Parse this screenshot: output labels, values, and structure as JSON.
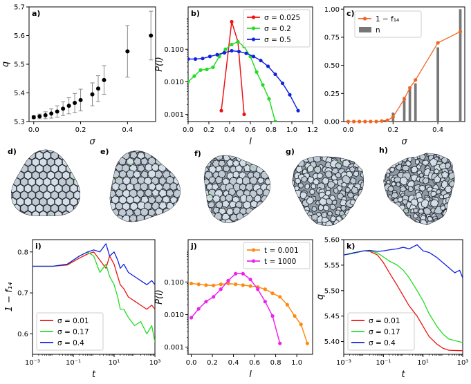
{
  "figure": {
    "description_none": null
  },
  "chart_data": [
    {
      "id": "a",
      "panel_label": "a)",
      "type": "scatter",
      "xlabel": "σ",
      "ylabel": "q",
      "xlim": [
        -0.02,
        0.52
      ],
      "ylim": [
        5.3,
        5.7
      ],
      "xticks": [
        0.0,
        0.2,
        0.4
      ],
      "xtick_labels": [
        "0.0",
        "0.2",
        "0.4"
      ],
      "yticks": [
        5.3,
        5.4,
        5.5,
        5.6,
        5.7
      ],
      "ytick_labels": [
        "5.3",
        "5.4",
        "5.5",
        "5.6",
        "5.7"
      ],
      "x": [
        0.0,
        0.025,
        0.05,
        0.075,
        0.1,
        0.125,
        0.15,
        0.175,
        0.2,
        0.25,
        0.275,
        0.3,
        0.4,
        0.5
      ],
      "y": [
        5.315,
        5.318,
        5.322,
        5.328,
        5.335,
        5.345,
        5.355,
        5.365,
        5.375,
        5.395,
        5.415,
        5.445,
        5.545,
        5.6
      ],
      "yerr": [
        0.005,
        0.008,
        0.012,
        0.016,
        0.02,
        0.024,
        0.028,
        0.033,
        0.038,
        0.04,
        0.045,
        0.05,
        0.09,
        0.085
      ]
    },
    {
      "id": "b",
      "panel_label": "b)",
      "type": "line",
      "yscale": "log",
      "xlabel": "l",
      "ylabel": "P(l)",
      "xlim": [
        0.0,
        1.2
      ],
      "ylim": [
        0.0006,
        2.0
      ],
      "xticks": [
        0.0,
        0.2,
        0.4,
        0.6,
        0.8,
        1.0,
        1.2
      ],
      "xtick_labels": [
        "0.0",
        "0.2",
        "0.4",
        "0.6",
        "0.8",
        "1.0",
        "1.2"
      ],
      "yticks": [
        0.001,
        0.01,
        0.1
      ],
      "ytick_labels": [
        "0.001",
        "0.010",
        "0.100"
      ],
      "legend_position": "top-right",
      "series": [
        {
          "name": "σ = 0.025",
          "color": "#ee1111",
          "x": [
            0.32,
            0.42,
            0.48,
            0.54
          ],
          "y": [
            0.0013,
            0.7,
            0.17,
            0.001
          ]
        },
        {
          "name": "σ = 0.2",
          "color": "#22dd22",
          "x": [
            0.0,
            0.06,
            0.12,
            0.18,
            0.24,
            0.3,
            0.36,
            0.42,
            0.48,
            0.54,
            0.6,
            0.66,
            0.72,
            0.78,
            0.84
          ],
          "y": [
            0.01,
            0.015,
            0.023,
            0.024,
            0.028,
            0.06,
            0.1,
            0.14,
            0.17,
            0.12,
            0.06,
            0.02,
            0.008,
            0.003,
            0.0006
          ]
        },
        {
          "name": "σ = 0.5",
          "color": "#1122dd",
          "x": [
            0.0,
            0.07,
            0.14,
            0.21,
            0.28,
            0.35,
            0.42,
            0.49,
            0.56,
            0.63,
            0.7,
            0.77,
            0.84,
            0.91,
            0.98,
            1.06
          ],
          "y": [
            0.05,
            0.05,
            0.052,
            0.06,
            0.068,
            0.078,
            0.09,
            0.085,
            0.075,
            0.06,
            0.045,
            0.03,
            0.017,
            0.009,
            0.004,
            0.0013
          ]
        }
      ]
    },
    {
      "id": "c",
      "panel_label": "c)",
      "type": "bar",
      "xlabel": "σ",
      "ylabel": "",
      "xlim": [
        -0.02,
        0.52
      ],
      "ylim": [
        0.0,
        1.02
      ],
      "xticks": [
        0.0,
        0.2,
        0.4
      ],
      "xtick_labels": [
        "0.0",
        "0.2",
        "0.4"
      ],
      "yticks": [
        0.0,
        0.25,
        0.5,
        0.75,
        1.0
      ],
      "ytick_labels": [
        "0.00",
        "0.25",
        "0.50",
        "0.75",
        "1.00"
      ],
      "legend_position": "top-left",
      "bars": {
        "name": "n",
        "color": "#777777",
        "x": [
          0.2,
          0.25,
          0.275,
          0.3,
          0.4,
          0.5
        ],
        "y": [
          0.08,
          0.22,
          0.29,
          0.34,
          0.66,
          1.0
        ]
      },
      "line": {
        "name": "1 − f₁₄",
        "color": "#ee6622",
        "x": [
          0.0,
          0.025,
          0.05,
          0.075,
          0.1,
          0.125,
          0.15,
          0.175,
          0.2,
          0.25,
          0.275,
          0.3,
          0.4,
          0.5
        ],
        "y": [
          0.0,
          0.0,
          0.0,
          0.0,
          0.0,
          0.0,
          0.005,
          0.012,
          0.04,
          0.2,
          0.3,
          0.37,
          0.7,
          0.8
        ]
      }
    },
    {
      "id": "i",
      "panel_label": "i)",
      "type": "line",
      "xscale": "log",
      "xlabel": "t",
      "ylabel": "1 − f₁₄",
      "xlim": [
        0.001,
        1000
      ],
      "ylim": [
        0.55,
        0.83
      ],
      "xticks": [
        0.001,
        0.1,
        10,
        1000
      ],
      "xtick_labels": [
        "10⁻³",
        "10⁻¹",
        "10¹",
        "10³"
      ],
      "yticks": [
        0.6,
        0.7,
        0.8
      ],
      "ytick_labels": [
        "0.6",
        "0.7",
        "0.8"
      ],
      "legend_position": "bottom-left",
      "series": [
        {
          "name": "σ = 0.01",
          "color": "#ee1111",
          "x": [
            0.001,
            0.01,
            0.05,
            0.2,
            0.5,
            1,
            2,
            4,
            6,
            10,
            15,
            20,
            30,
            50,
            100,
            200,
            400,
            700,
            1000
          ],
          "y": [
            0.765,
            0.765,
            0.768,
            0.785,
            0.795,
            0.8,
            0.78,
            0.76,
            0.79,
            0.77,
            0.74,
            0.72,
            0.71,
            0.69,
            0.68,
            0.67,
            0.66,
            0.67,
            0.66
          ]
        },
        {
          "name": "σ = 0.17",
          "color": "#22dd22",
          "x": [
            0.001,
            0.01,
            0.05,
            0.2,
            0.5,
            1,
            2,
            4,
            6,
            10,
            15,
            20,
            30,
            50,
            100,
            200,
            400,
            700,
            1000
          ],
          "y": [
            0.765,
            0.765,
            0.77,
            0.79,
            0.8,
            0.79,
            0.75,
            0.77,
            0.74,
            0.72,
            0.69,
            0.66,
            0.66,
            0.64,
            0.62,
            0.63,
            0.6,
            0.62,
            0.58
          ]
        },
        {
          "name": "σ = 0.4",
          "color": "#1122dd",
          "x": [
            0.001,
            0.01,
            0.05,
            0.2,
            0.5,
            1,
            2,
            4,
            6,
            10,
            15,
            20,
            30,
            50,
            100,
            200,
            400,
            700,
            1000
          ],
          "y": [
            0.765,
            0.765,
            0.77,
            0.79,
            0.8,
            0.805,
            0.8,
            0.82,
            0.79,
            0.8,
            0.78,
            0.76,
            0.77,
            0.75,
            0.74,
            0.73,
            0.72,
            0.73,
            0.72
          ]
        }
      ]
    },
    {
      "id": "j",
      "panel_label": "j)",
      "type": "line",
      "yscale": "log",
      "xlabel": "l",
      "ylabel": "P(l)",
      "xlim": [
        -0.03,
        1.15
      ],
      "ylim": [
        0.0006,
        2.0
      ],
      "xticks": [
        0.0,
        0.2,
        0.4,
        0.6,
        0.8,
        1.0
      ],
      "xtick_labels": [
        "0.0",
        "0.2",
        "0.4",
        "0.6",
        "0.8",
        "1.0"
      ],
      "yticks": [
        0.001,
        0.01,
        0.1
      ],
      "ytick_labels": [
        "0.001",
        "0.010",
        "0.100"
      ],
      "legend_position": "top-right",
      "series": [
        {
          "name": "t = 0.001",
          "color": "#ff8811",
          "x": [
            0.0,
            0.07,
            0.14,
            0.21,
            0.28,
            0.35,
            0.42,
            0.49,
            0.56,
            0.63,
            0.7,
            0.77,
            0.84,
            0.91,
            0.98,
            1.04,
            1.1
          ],
          "y": [
            0.09,
            0.085,
            0.08,
            0.078,
            0.085,
            0.09,
            0.085,
            0.08,
            0.075,
            0.07,
            0.06,
            0.045,
            0.035,
            0.02,
            0.009,
            0.005,
            0.0013
          ]
        },
        {
          "name": "t = 1000",
          "color": "#ee22ee",
          "x": [
            0.0,
            0.07,
            0.14,
            0.21,
            0.28,
            0.35,
            0.42,
            0.49,
            0.56,
            0.63,
            0.7,
            0.77,
            0.84
          ],
          "y": [
            0.008,
            0.015,
            0.025,
            0.035,
            0.06,
            0.11,
            0.18,
            0.18,
            0.12,
            0.06,
            0.025,
            0.009,
            0.0013
          ]
        }
      ]
    },
    {
      "id": "k",
      "panel_label": "k)",
      "type": "line",
      "xscale": "log",
      "xlabel": "t",
      "ylabel": "q",
      "xlim": [
        0.001,
        1000
      ],
      "ylim": [
        5.375,
        5.6
      ],
      "xticks": [
        0.001,
        0.1,
        10,
        1000
      ],
      "xtick_labels": [
        "10⁻³",
        "10⁻¹",
        "10¹",
        "10³"
      ],
      "yticks": [
        5.4,
        5.45,
        5.5,
        5.55,
        5.6
      ],
      "ytick_labels": [
        "5.40",
        "5.45",
        "5.50",
        "5.55",
        "5.60"
      ],
      "legend_position": "bottom-left",
      "series": [
        {
          "name": "σ = 0.01",
          "color": "#ee1111",
          "x": [
            0.001,
            0.003,
            0.01,
            0.02,
            0.05,
            0.1,
            0.2,
            0.5,
            1,
            2,
            5,
            10,
            20,
            50,
            100,
            200,
            1000
          ],
          "y": [
            5.57,
            5.573,
            5.578,
            5.577,
            5.57,
            5.555,
            5.535,
            5.51,
            5.49,
            5.47,
            5.45,
            5.43,
            5.41,
            5.395,
            5.387,
            5.383,
            5.382
          ]
        },
        {
          "name": "σ = 0.17",
          "color": "#22dd22",
          "x": [
            0.001,
            0.003,
            0.01,
            0.02,
            0.05,
            0.1,
            0.2,
            0.5,
            1,
            2,
            5,
            10,
            20,
            50,
            100,
            200,
            1000
          ],
          "y": [
            5.57,
            5.573,
            5.578,
            5.578,
            5.574,
            5.566,
            5.558,
            5.55,
            5.54,
            5.525,
            5.5,
            5.48,
            5.455,
            5.43,
            5.415,
            5.405,
            5.398
          ]
        },
        {
          "name": "σ = 0.4",
          "color": "#1122dd",
          "x": [
            0.001,
            0.003,
            0.01,
            0.02,
            0.05,
            0.1,
            0.2,
            0.5,
            1,
            2,
            5,
            10,
            20,
            50,
            100,
            200,
            400,
            700,
            1000
          ],
          "y": [
            5.57,
            5.574,
            5.578,
            5.579,
            5.577,
            5.578,
            5.58,
            5.582,
            5.585,
            5.582,
            5.59,
            5.578,
            5.575,
            5.565,
            5.555,
            5.545,
            5.535,
            5.54,
            5.525
          ]
        }
      ]
    }
  ],
  "snapshots": [
    {
      "id": "d",
      "panel_label": "d)",
      "disorder": 0.0
    },
    {
      "id": "e",
      "panel_label": "e)",
      "disorder": 0.15
    },
    {
      "id": "f",
      "panel_label": "f)",
      "disorder": 0.35
    },
    {
      "id": "g",
      "panel_label": "g)",
      "disorder": 0.7
    },
    {
      "id": "h",
      "panel_label": "h)",
      "disorder": 1.0
    }
  ],
  "colors": {
    "face_light": "#d4dee8",
    "face_dark": "#8e9aa6",
    "edge": "#25282c",
    "accent_green": "#77cc66"
  }
}
